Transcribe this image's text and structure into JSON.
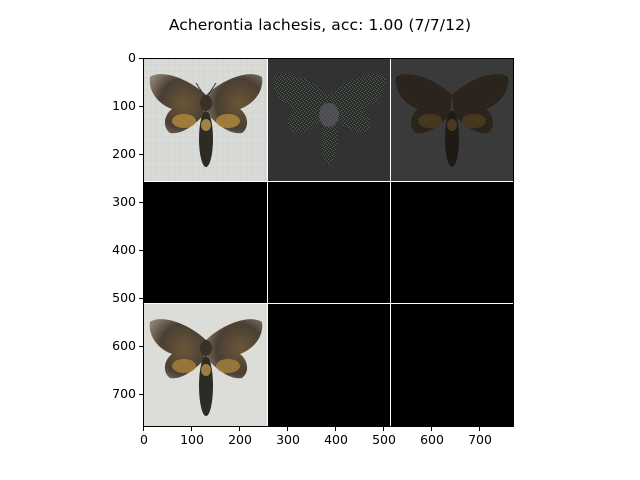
{
  "figure": {
    "title": "Acherontia lachesis, acc: 1.00 (7/7/12)"
  },
  "axes": {
    "x_ticks": [
      "0",
      "100",
      "200",
      "300",
      "400",
      "500",
      "600",
      "700"
    ],
    "y_ticks": [
      "0",
      "100",
      "200",
      "300",
      "400",
      "500",
      "600",
      "700"
    ],
    "x_range": [
      0,
      770
    ],
    "y_range": [
      770,
      0
    ]
  },
  "grid": {
    "rows": 3,
    "cols": 3,
    "tiles": [
      {
        "row": 0,
        "col": 0,
        "content": "moth-image"
      },
      {
        "row": 0,
        "col": 1,
        "content": "noisy-saliency-map"
      },
      {
        "row": 0,
        "col": 2,
        "content": "dark-moth-overlay"
      },
      {
        "row": 1,
        "col": 0,
        "content": "black"
      },
      {
        "row": 1,
        "col": 1,
        "content": "black"
      },
      {
        "row": 1,
        "col": 2,
        "content": "black"
      },
      {
        "row": 2,
        "col": 0,
        "content": "moth-image"
      },
      {
        "row": 2,
        "col": 1,
        "content": "black"
      },
      {
        "row": 2,
        "col": 2,
        "content": "black"
      }
    ]
  },
  "colors": {
    "background": "#ffffff",
    "tile_black": "#000000",
    "moth_bg": "#d9dbd8",
    "dark_tile_bg": "#3a3a3a"
  }
}
